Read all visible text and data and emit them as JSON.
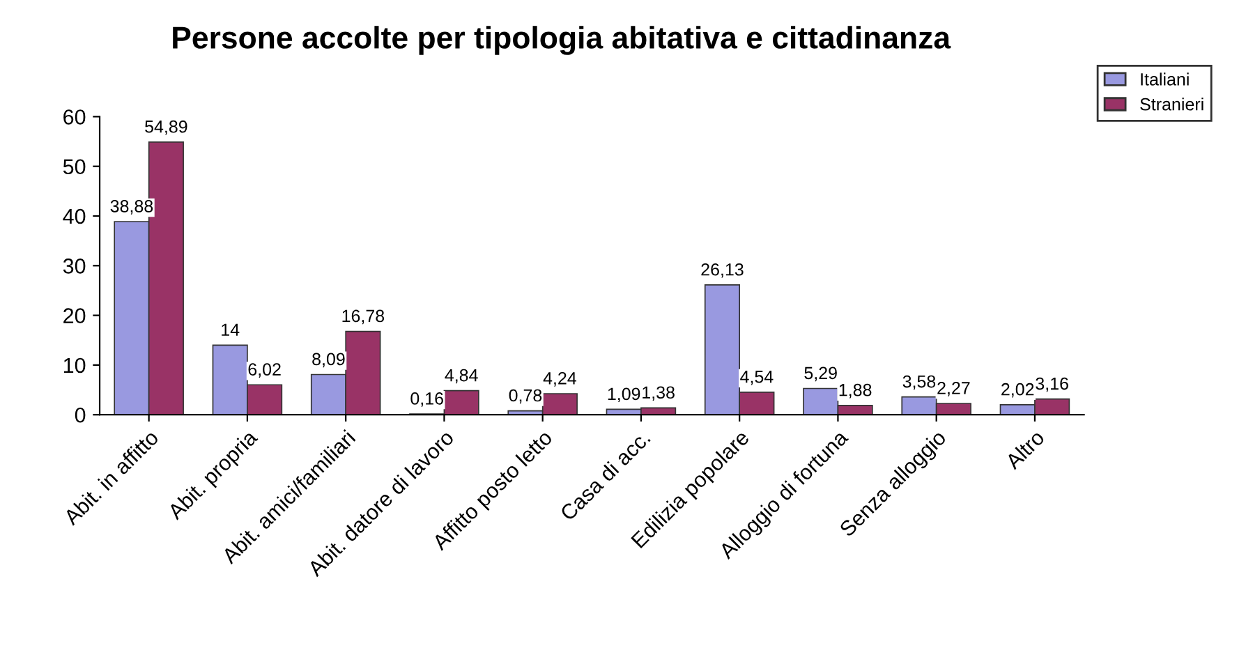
{
  "chart_data": {
    "type": "bar",
    "title": "Persone accolte per tipologia abitativa e cittadinanza",
    "categories": [
      "Abit. in affitto",
      "Abit. propria",
      "Abit. amici/familiari",
      "Abit. datore di lavoro",
      "Affitto posto letto",
      "Casa di acc.",
      "Edilizia popolare",
      "Alloggio di fortuna",
      "Senza alloggio",
      "Altro"
    ],
    "series": [
      {
        "name": "Italiani",
        "color": "#9999e0",
        "values": [
          38.88,
          14,
          8.09,
          0.16,
          0.78,
          1.09,
          26.13,
          5.29,
          3.58,
          2.02
        ],
        "value_labels": [
          "38,88",
          "14",
          "8,09",
          "0,16",
          "0,78",
          "1,09",
          "26,13",
          "5,29",
          "3,58",
          "2,02"
        ]
      },
      {
        "name": "Stranieri",
        "color": "#993366",
        "values": [
          54.89,
          6.02,
          16.78,
          4.84,
          4.24,
          1.38,
          4.54,
          1.88,
          2.27,
          3.16
        ],
        "value_labels": [
          "54,89",
          "6,02",
          "16,78",
          "4,84",
          "4,24",
          "1,38",
          "4,54",
          "1,88",
          "2,27",
          "3,16"
        ]
      }
    ],
    "ylim": [
      0,
      60
    ],
    "yticks": [
      0,
      10,
      20,
      30,
      40,
      50,
      60
    ],
    "grid": false,
    "legend": "top right"
  }
}
